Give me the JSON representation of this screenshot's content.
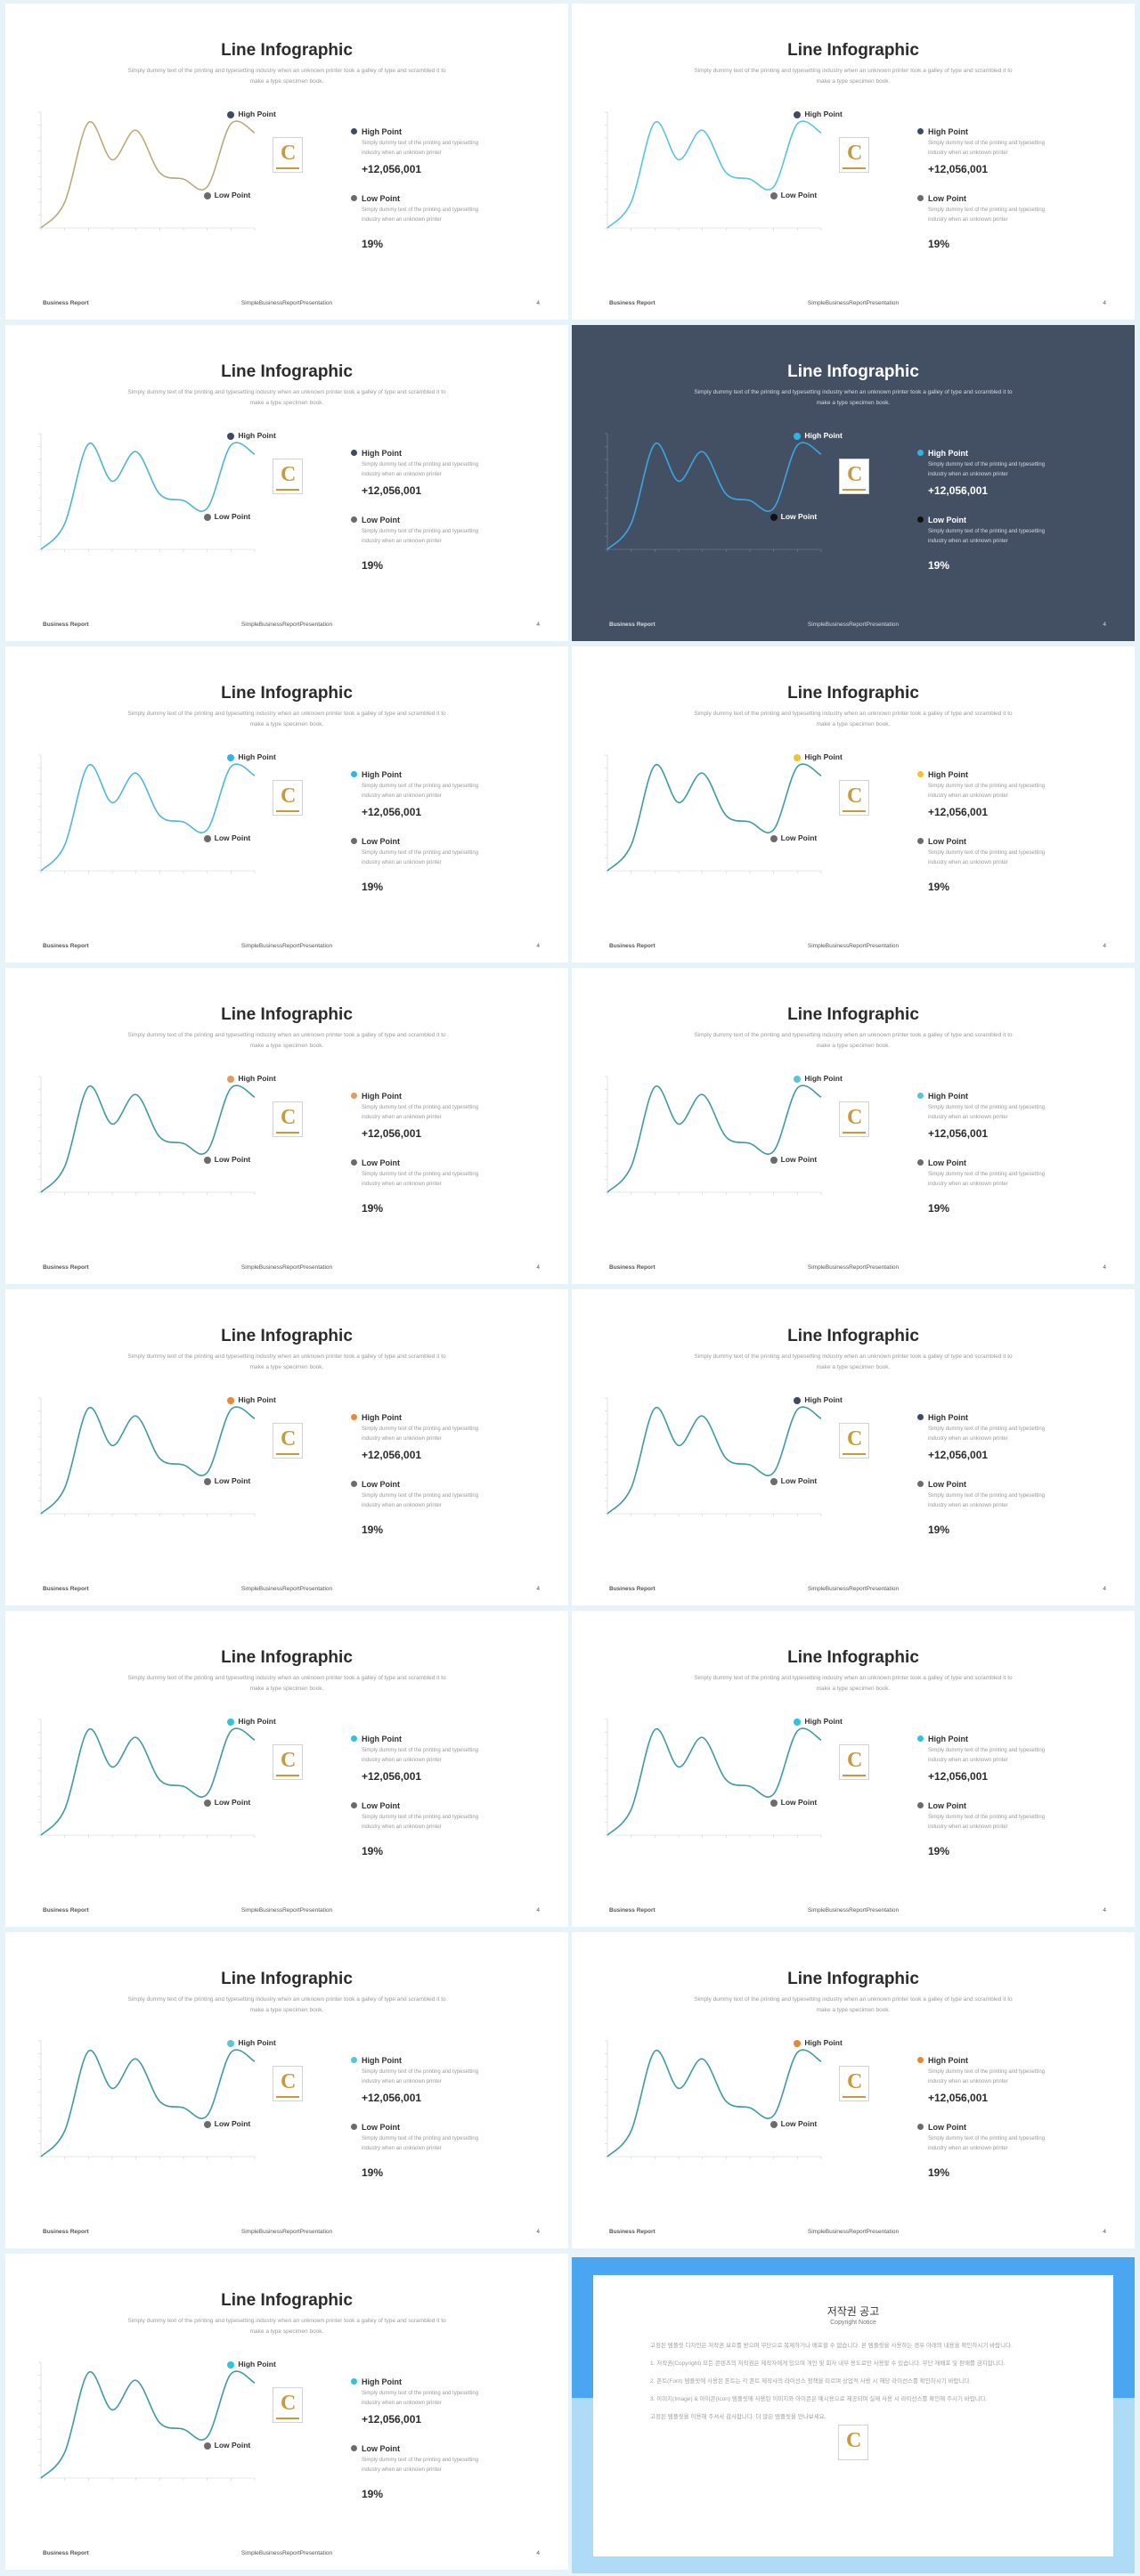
{
  "slide_template": {
    "title": "Line Infographic",
    "subtitle": "Simply dummy text of the printing and typesetting industry when an unknown printer took a galley of type and scrambled it to make a type specimen book.",
    "high_label": "High Point",
    "low_label": "Low Point",
    "high_desc": "Simply dummy text of the printing and typesetting industry when an unknown printer",
    "low_desc": "Simply dummy text of the printing and typesetting industry when an unknown printer",
    "value": "+12,056,001",
    "percent": "19%",
    "footer_left": "Business Report",
    "footer_center": "SimpleBusinessReportPresentation",
    "footer_right": "4",
    "logo_letter": "C"
  },
  "chart_data": {
    "type": "line",
    "title": "",
    "x": [
      1,
      2,
      3,
      4,
      5,
      6,
      7,
      8,
      9,
      10
    ],
    "values": [
      0,
      2,
      8.2,
      5.3,
      7.6,
      4.3,
      3.8,
      3.2,
      8.1,
      7.4
    ],
    "high_point": 9,
    "low_point": 8,
    "ylim": [
      0,
      9
    ],
    "grid": false
  },
  "slides": [
    {
      "line_color": "#b9ab7c",
      "high_dot": "#3e4a63",
      "low_dot": "#6b6b6b",
      "dark": false
    },
    {
      "line_color": "#5bc3da",
      "high_dot": "#3e4a63",
      "low_dot": "#6b6b6b",
      "dark": false
    },
    {
      "line_color": "#4eb6cc",
      "high_dot": "#3e4a63",
      "low_dot": "#6b6b6b",
      "dark": false
    },
    {
      "line_color": "#3aa7e3",
      "high_dot": "#2eb4e5",
      "low_dot": "#111111",
      "dark": true
    },
    {
      "line_color": "#4fb8d6",
      "high_dot": "#2eb4e5",
      "low_dot": "#6b6b6b",
      "dark": false
    },
    {
      "line_color": "#3f9aa0",
      "high_dot": "#f2c230",
      "low_dot": "#6b6b6b",
      "dark": false
    },
    {
      "line_color": "#3f9aa0",
      "high_dot": "#e59a5a",
      "low_dot": "#6b6b6b",
      "dark": false
    },
    {
      "line_color": "#3f9aa0",
      "high_dot": "#5bc3da",
      "low_dot": "#6b6b6b",
      "dark": false
    },
    {
      "line_color": "#3f9aa0",
      "high_dot": "#e58a3a",
      "low_dot": "#6b6b6b",
      "dark": false
    },
    {
      "line_color": "#3f9aa0",
      "high_dot": "#3e4a63",
      "low_dot": "#6b6b6b",
      "dark": false
    },
    {
      "line_color": "#3f9aa0",
      "high_dot": "#2ec4dd",
      "low_dot": "#6b6b6b",
      "dark": false
    },
    {
      "line_color": "#3f9aa0",
      "high_dot": "#2ec4dd",
      "low_dot": "#6b6b6b",
      "dark": false
    },
    {
      "line_color": "#3f9aa0",
      "high_dot": "#5bc3da",
      "low_dot": "#6b6b6b",
      "dark": false
    },
    {
      "line_color": "#3f9aa0",
      "high_dot": "#e08a3a",
      "low_dot": "#6b6b6b",
      "dark": false
    },
    {
      "line_color": "#3f9aa0",
      "high_dot": "#2ec4dd",
      "low_dot": "#6b6b6b",
      "dark": false
    }
  ],
  "copyright": {
    "title": "저작권 공고",
    "subtitle": "Copyright Notice",
    "paragraphs": [
      "고정된 템플릿 디자인은 저작권 보호를 받으며 무단으로 복제하거나 배포할 수 없습니다. 본 템플릿을 사용하는 경우 아래의 내용을 확인하시기 바랍니다.",
      "1. 저작권(Copyright) 모든 콘텐츠의 저작권은 제작자에게 있으며 개인 및 회사 내부 용도로만 사용할 수 있습니다. 무단 재배포 및 판매를 금지합니다.",
      "2. 폰트(Font) 템플릿에 사용된 폰트는 각 폰트 제작사의 라이선스 정책을 따르며 상업적 사용 시 해당 라이선스를 확인하시기 바랍니다.",
      "3. 이미지(Image) & 아이콘(Icon) 템플릿에 사용된 이미지와 아이콘은 예시용으로 제공되며 실제 사용 시 라이선스를 확인해 주시기 바랍니다.",
      "고정된 템플릿을 이용해 주셔서 감사합니다. 더 많은 템플릿을 만나보세요."
    ]
  }
}
